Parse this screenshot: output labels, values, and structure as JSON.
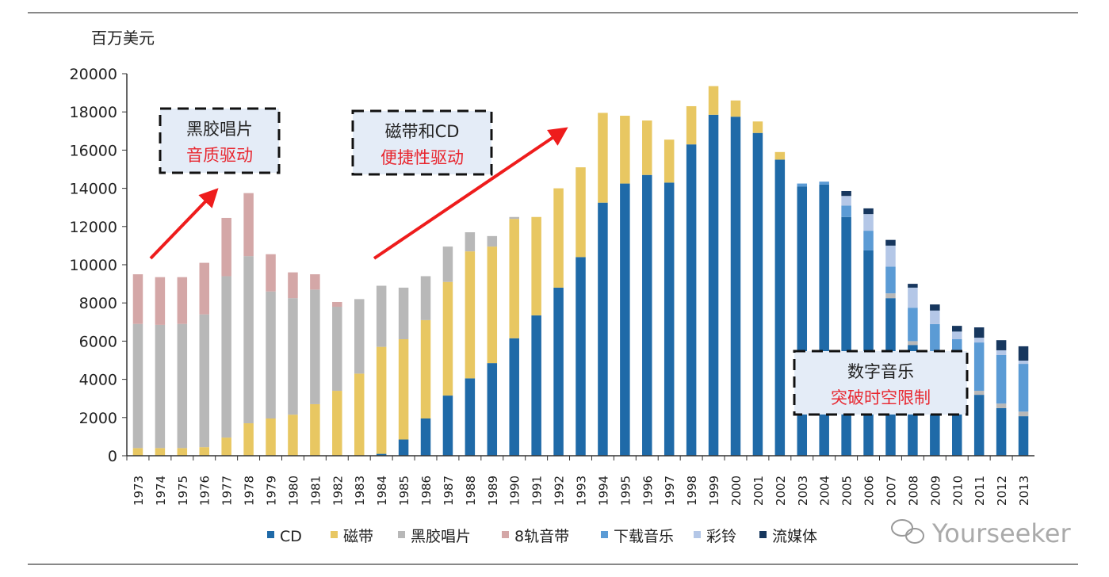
{
  "chart_data": {
    "type": "bar",
    "stacked": true,
    "ylabel": "百万美元",
    "ylim": [
      0,
      20000
    ],
    "yticks": [
      0,
      2000,
      4000,
      6000,
      8000,
      10000,
      12000,
      14000,
      16000,
      18000,
      20000
    ],
    "grid": false,
    "legend_position": "bottom",
    "categories": [
      "1973",
      "1974",
      "1975",
      "1976",
      "1977",
      "1978",
      "1979",
      "1980",
      "1981",
      "1982",
      "1983",
      "1984",
      "1985",
      "1986",
      "1987",
      "1988",
      "1989",
      "1990",
      "1991",
      "1992",
      "1993",
      "1994",
      "1995",
      "1996",
      "1997",
      "1998",
      "1999",
      "2000",
      "2001",
      "2002",
      "2003",
      "2004",
      "2005",
      "2006",
      "2007",
      "2008",
      "2009",
      "2010",
      "2011",
      "2012",
      "2013"
    ],
    "series": [
      {
        "name": "CD",
        "color": "#1f6aa8",
        "values": [
          0,
          0,
          0,
          0,
          0,
          0,
          0,
          0,
          0,
          0,
          0,
          100,
          850,
          1950,
          3150,
          4050,
          4850,
          6150,
          7350,
          8800,
          10400,
          13250,
          14250,
          14700,
          14300,
          16300,
          17850,
          17750,
          16900,
          15500,
          14100,
          14200,
          12500,
          10750,
          8250,
          5800,
          4600,
          3400,
          3190,
          2490,
          2070
        ]
      },
      {
        "name": "磁带",
        "color": "#e8c762",
        "values": [
          400,
          400,
          400,
          450,
          950,
          1700,
          1950,
          2150,
          2700,
          3400,
          4300,
          5600,
          5250,
          5150,
          5950,
          6650,
          6100,
          6250,
          5150,
          5200,
          4700,
          4700,
          3550,
          2850,
          2250,
          2000,
          1500,
          850,
          600,
          400,
          0,
          0,
          0,
          0,
          0,
          0,
          0,
          0,
          0,
          0,
          0
        ]
      },
      {
        "name": "黑胶唱片",
        "color": "#b8b8b8",
        "values": [
          6500,
          6450,
          6500,
          6950,
          8450,
          8750,
          6650,
          6100,
          6000,
          4400,
          3900,
          3200,
          2700,
          2300,
          1850,
          1000,
          550,
          100,
          0,
          0,
          0,
          0,
          0,
          0,
          0,
          0,
          0,
          0,
          0,
          0,
          0,
          0,
          0,
          0,
          250,
          200,
          100,
          100,
          210,
          240,
          240
        ]
      },
      {
        "name": "8轨音带",
        "color": "#d4a7a7",
        "values": [
          2600,
          2500,
          2450,
          2700,
          3050,
          3300,
          1950,
          1350,
          800,
          250,
          0,
          0,
          0,
          0,
          0,
          0,
          0,
          0,
          0,
          0,
          0,
          0,
          0,
          0,
          0,
          0,
          0,
          0,
          0,
          0,
          0,
          0,
          0,
          0,
          0,
          0,
          0,
          0,
          0,
          0,
          0
        ]
      },
      {
        "name": "下载音乐",
        "color": "#5b9bd5",
        "values": [
          0,
          0,
          0,
          0,
          0,
          0,
          0,
          0,
          0,
          0,
          0,
          0,
          0,
          0,
          0,
          0,
          0,
          0,
          0,
          0,
          0,
          0,
          0,
          0,
          0,
          0,
          0,
          0,
          0,
          0,
          150,
          150,
          600,
          1030,
          1400,
          1750,
          2190,
          2600,
          2530,
          2540,
          2500
        ]
      },
      {
        "name": "彩铃",
        "color": "#b4c7e7",
        "values": [
          0,
          0,
          0,
          0,
          0,
          0,
          0,
          0,
          0,
          0,
          0,
          0,
          0,
          0,
          0,
          0,
          0,
          0,
          0,
          0,
          0,
          0,
          0,
          0,
          0,
          0,
          0,
          0,
          0,
          0,
          0,
          0,
          500,
          870,
          1100,
          1050,
          710,
          400,
          250,
          250,
          170
        ]
      },
      {
        "name": "流媒体",
        "color": "#17375e",
        "values": [
          0,
          0,
          0,
          0,
          0,
          0,
          0,
          0,
          0,
          0,
          0,
          0,
          0,
          0,
          0,
          0,
          0,
          0,
          0,
          0,
          0,
          0,
          0,
          0,
          0,
          0,
          0,
          0,
          0,
          0,
          0,
          0,
          260,
          300,
          300,
          200,
          320,
          300,
          540,
          530,
          750
        ]
      }
    ],
    "annotations": [
      {
        "line1": "黑胶唱片",
        "line2": "音质驱动"
      },
      {
        "line1": "磁带和CD",
        "line2": "便捷性驱动"
      },
      {
        "line1": "数字音乐",
        "line2": "突破时空限制"
      }
    ]
  },
  "watermark": "Yourseeker",
  "colors": {
    "annotation_red": "#e8262f",
    "arrow_red": "#ee1c1c",
    "box_fill": "#e4ecf7"
  }
}
